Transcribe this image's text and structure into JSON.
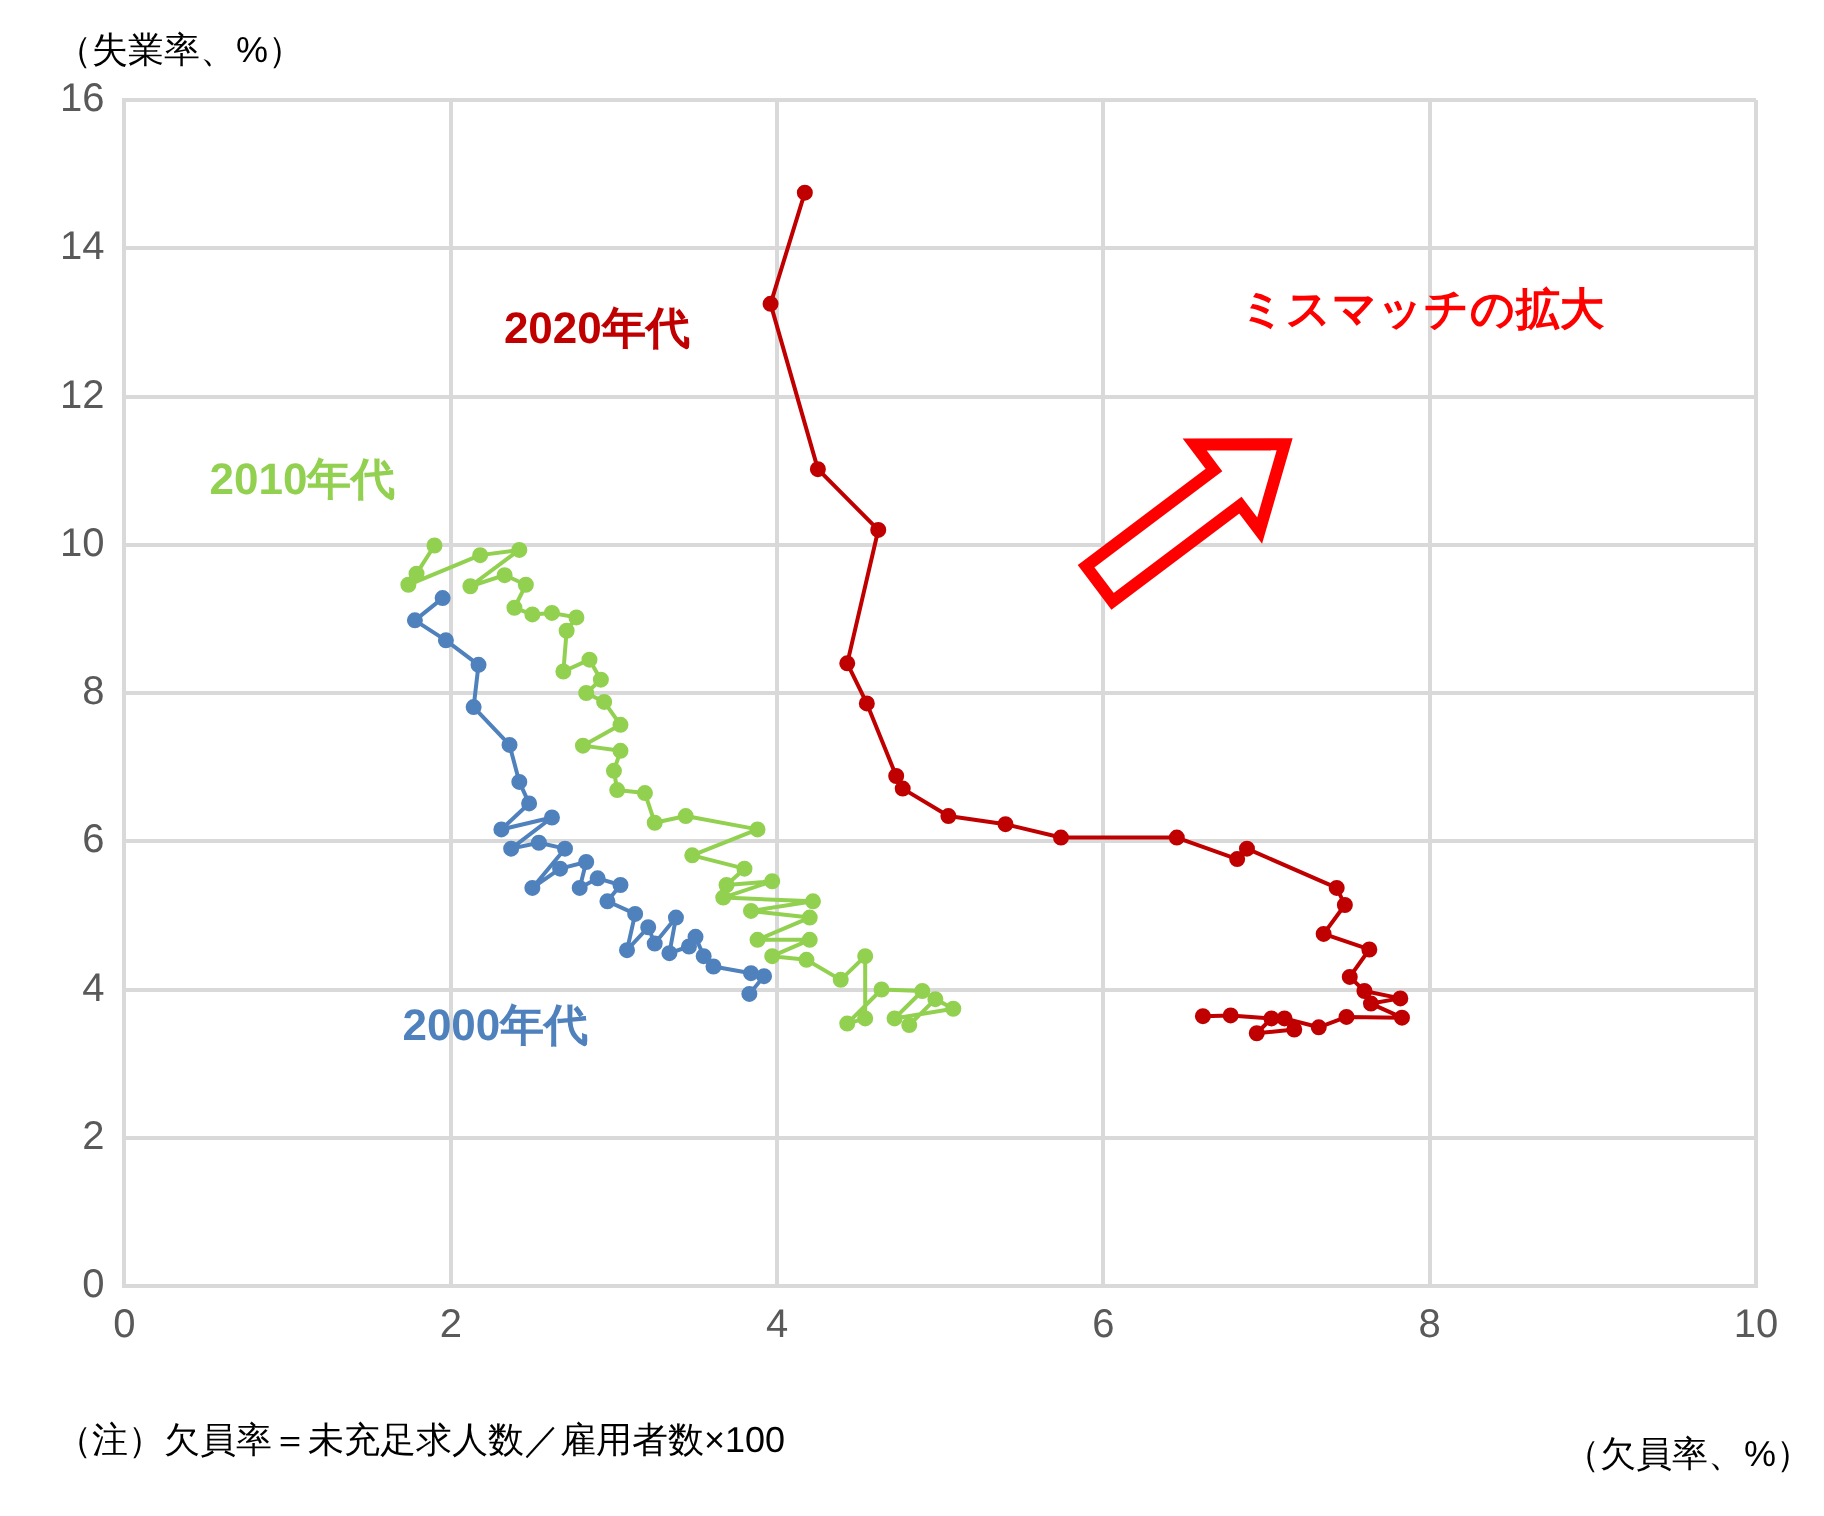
{
  "chart_data": {
    "type": "line",
    "xlabel": "（欠員率、%）",
    "ylabel": "（失業率、%）",
    "xlim": [
      0,
      10
    ],
    "xticks": [
      0,
      2,
      4,
      6,
      8,
      10
    ],
    "ylim": [
      0,
      16
    ],
    "yticks": [
      0,
      2,
      4,
      6,
      8,
      10,
      12,
      14,
      16
    ],
    "grid": true,
    "legend": false,
    "marker": "circle",
    "line_style": "solid",
    "annotations": [
      "ミスマッチの拡大",
      "（注）欠員率＝未充足求人数／雇用者数×100"
    ],
    "series": [
      {
        "name": "2000年代",
        "color": "#4f81bd",
        "x": [
          3.83,
          3.92,
          3.84,
          3.61,
          3.55,
          3.5,
          3.46,
          3.34,
          3.38,
          3.25,
          3.21,
          3.08,
          3.13,
          2.96,
          3.04,
          2.9,
          2.79,
          2.83,
          2.67,
          2.5,
          2.7,
          2.54,
          2.37,
          2.62,
          2.31,
          2.48,
          2.42,
          2.36,
          2.14,
          2.17,
          1.97,
          1.78,
          1.95
        ],
        "values": [
          3.94,
          4.18,
          4.22,
          4.31,
          4.45,
          4.71,
          4.58,
          4.49,
          4.97,
          4.62,
          4.84,
          4.53,
          5.02,
          5.19,
          5.41,
          5.5,
          5.37,
          5.72,
          5.63,
          5.37,
          5.9,
          5.98,
          5.9,
          6.32,
          6.16,
          6.51,
          6.8,
          7.3,
          7.81,
          8.38,
          8.71,
          8.98,
          9.28
        ]
      },
      {
        "name": "2010年代",
        "color": "#92d050",
        "x": [
          1.9,
          1.79,
          1.74,
          2.18,
          2.42,
          2.12,
          2.33,
          2.46,
          2.39,
          2.5,
          2.62,
          2.77,
          2.71,
          2.69,
          2.85,
          2.92,
          2.83,
          2.94,
          3.04,
          2.81,
          3.04,
          3.0,
          3.02,
          3.19,
          3.25,
          3.44,
          3.88,
          3.48,
          3.8,
          3.69,
          3.97,
          3.67,
          4.22,
          3.84,
          4.2,
          3.88,
          4.2,
          3.97,
          4.18,
          4.39,
          4.54,
          4.54,
          4.43,
          4.64,
          4.89,
          4.72,
          5.08,
          4.97,
          4.81
        ],
        "values": [
          9.99,
          9.61,
          9.46,
          9.86,
          9.93,
          9.44,
          9.59,
          9.46,
          9.15,
          9.06,
          9.08,
          9.02,
          8.84,
          8.29,
          8.45,
          8.18,
          8.0,
          7.88,
          7.57,
          7.29,
          7.22,
          6.95,
          6.69,
          6.65,
          6.25,
          6.34,
          6.16,
          5.81,
          5.63,
          5.41,
          5.46,
          5.24,
          5.19,
          5.06,
          4.97,
          4.67,
          4.67,
          4.45,
          4.4,
          4.13,
          4.45,
          3.61,
          3.54,
          4.0,
          3.98,
          3.61,
          3.74,
          3.87,
          3.52
        ]
      },
      {
        "name": "2020年代",
        "color": "#c00000",
        "x": [
          4.17,
          3.96,
          4.25,
          4.62,
          4.43,
          4.55,
          4.73,
          4.77,
          5.05,
          5.4,
          5.74,
          6.45,
          6.82,
          6.88,
          7.43,
          7.48,
          7.35,
          7.63,
          7.51,
          7.6,
          7.82,
          7.64,
          7.83,
          7.49,
          7.32,
          7.11,
          7.17,
          6.94,
          7.03,
          6.78,
          6.61
        ],
        "values": [
          14.75,
          13.25,
          11.02,
          10.2,
          8.4,
          7.86,
          6.88,
          6.71,
          6.34,
          6.23,
          6.05,
          6.05,
          5.76,
          5.9,
          5.37,
          5.14,
          4.75,
          4.54,
          4.17,
          3.98,
          3.88,
          3.81,
          3.62,
          3.63,
          3.49,
          3.61,
          3.46,
          3.41,
          3.61,
          3.65,
          3.64
        ]
      }
    ]
  }
}
